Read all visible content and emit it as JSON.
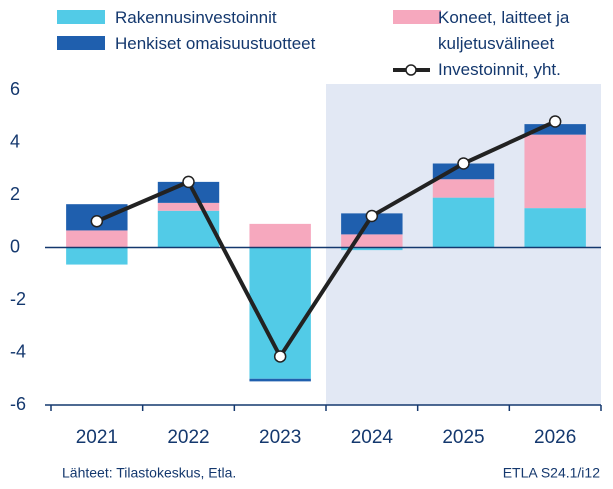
{
  "chart_data": {
    "type": "bar",
    "categories": [
      "2021",
      "2022",
      "2023",
      "2024",
      "2025",
      "2026"
    ],
    "series": [
      {
        "name": "Rakennusinvestoinnit",
        "color": "#52cbe7",
        "values": [
          -0.65,
          1.4,
          -5.0,
          -0.1,
          1.9,
          1.5
        ]
      },
      {
        "name": "Koneet, laitteet ja kuljetusvälineet",
        "color": "#f6a8be",
        "values": [
          0.65,
          0.3,
          0.9,
          0.5,
          0.7,
          2.8
        ]
      },
      {
        "name": "Henkiset omaisuustuotteet",
        "color": "#1f5fae",
        "values": [
          1.0,
          0.8,
          -0.1,
          0.8,
          0.6,
          0.4
        ]
      },
      {
        "name": "Investoinnit, yht.",
        "type": "line",
        "color": "#222222",
        "values": [
          1.0,
          2.5,
          -4.15,
          1.2,
          3.2,
          4.8
        ]
      }
    ],
    "ylim": [
      -6,
      6
    ],
    "yticks": [
      -6,
      -4,
      -2,
      0,
      2,
      4,
      6
    ],
    "source": "Lähteet: Tilastokeskus, Etla.",
    "note": "ETLA S24.1/i12"
  }
}
